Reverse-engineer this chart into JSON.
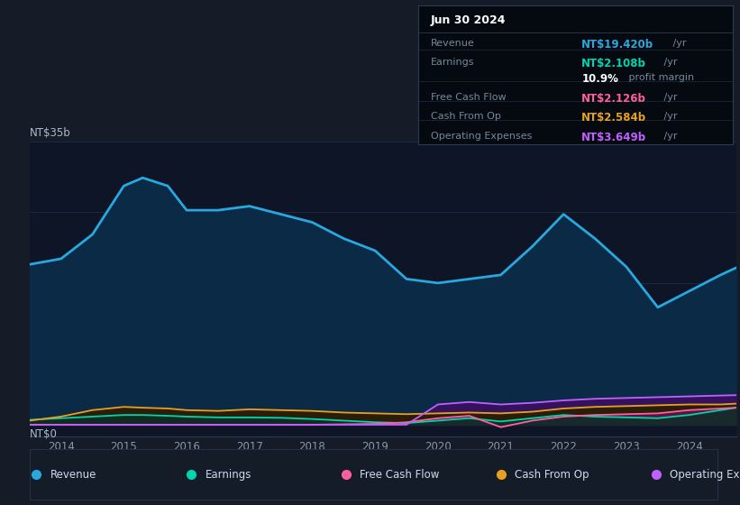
{
  "bg_color": "#161c27",
  "plot_bg_color": "#0d1526",
  "grid_color": "#1e2d45",
  "title_label": "NT$35b",
  "zero_label": "NT$0",
  "y_min": -1.5,
  "y_max": 35,
  "x_min": 2013.5,
  "x_max": 2024.75,
  "revenue_color": "#29a8e0",
  "revenue_fill": "#0a2a45",
  "earnings_color": "#00d4b0",
  "earnings_fill": "#0a3028",
  "fcf_color": "#ff5fa0",
  "fcf_fill": "#5a1545",
  "cashop_color": "#e8a020",
  "cashop_fill": "#2a1e08",
  "opex_color": "#c060ff",
  "opex_fill": "#3a1060",
  "legend_items": [
    "Revenue",
    "Earnings",
    "Free Cash Flow",
    "Cash From Op",
    "Operating Expenses"
  ],
  "legend_colors": [
    "#29a8e0",
    "#00d4b0",
    "#ff5fa0",
    "#e8a020",
    "#c060ff"
  ],
  "tooltip_title": "Jun 30 2024",
  "tooltip_rows": [
    {
      "label": "Revenue",
      "value": "NT$19.420b",
      "suffix": " /yr",
      "color": "#29a8e0"
    },
    {
      "label": "Earnings",
      "value": "NT$2.108b",
      "suffix": " /yr",
      "color": "#00d4b0"
    },
    {
      "label": "",
      "value": "10.9%",
      "suffix": " profit margin",
      "color": "#ffffff"
    },
    {
      "label": "Free Cash Flow",
      "value": "NT$2.126b",
      "suffix": " /yr",
      "color": "#ff5fa0"
    },
    {
      "label": "Cash From Op",
      "value": "NT$2.584b",
      "suffix": " /yr",
      "color": "#e8a020"
    },
    {
      "label": "Operating Expenses",
      "value": "NT$3.649b",
      "suffix": " /yr",
      "color": "#c060ff"
    }
  ],
  "years": [
    2013.5,
    2014.0,
    2014.5,
    2015.0,
    2015.3,
    2015.7,
    2016.0,
    2016.5,
    2017.0,
    2017.5,
    2018.0,
    2018.5,
    2019.0,
    2019.5,
    2020.0,
    2020.5,
    2021.0,
    2021.5,
    2022.0,
    2022.5,
    2023.0,
    2023.5,
    2024.0,
    2024.5,
    2024.75
  ],
  "revenue": [
    19.8,
    20.5,
    23.5,
    29.5,
    30.5,
    29.5,
    26.5,
    26.5,
    27.0,
    26.0,
    25.0,
    23.0,
    21.5,
    18.0,
    17.5,
    18.0,
    18.5,
    22.0,
    26.0,
    23.0,
    19.5,
    14.5,
    16.5,
    18.5,
    19.4
  ],
  "earnings": [
    0.6,
    0.8,
    1.0,
    1.2,
    1.2,
    1.1,
    1.0,
    0.9,
    0.9,
    0.85,
    0.7,
    0.5,
    0.3,
    0.2,
    0.5,
    0.8,
    0.4,
    0.8,
    1.2,
    1.0,
    0.9,
    0.8,
    1.2,
    1.8,
    2.1
  ],
  "fcf": [
    0.0,
    0.0,
    0.0,
    0.0,
    0.0,
    0.0,
    0.0,
    0.0,
    0.0,
    0.0,
    0.0,
    0.05,
    0.1,
    0.3,
    0.8,
    1.1,
    -0.3,
    0.5,
    1.0,
    1.2,
    1.3,
    1.4,
    1.8,
    2.0,
    2.1
  ],
  "cashop": [
    0.5,
    1.0,
    1.8,
    2.2,
    2.1,
    2.0,
    1.8,
    1.7,
    1.9,
    1.8,
    1.7,
    1.5,
    1.4,
    1.3,
    1.4,
    1.5,
    1.4,
    1.6,
    2.0,
    2.2,
    2.3,
    2.4,
    2.5,
    2.5,
    2.6
  ],
  "opex": [
    0.0,
    0.0,
    0.0,
    0.0,
    0.0,
    0.0,
    0.0,
    0.0,
    0.0,
    0.0,
    0.0,
    0.0,
    0.0,
    0.0,
    2.5,
    2.8,
    2.5,
    2.7,
    3.0,
    3.2,
    3.3,
    3.4,
    3.5,
    3.6,
    3.65
  ]
}
